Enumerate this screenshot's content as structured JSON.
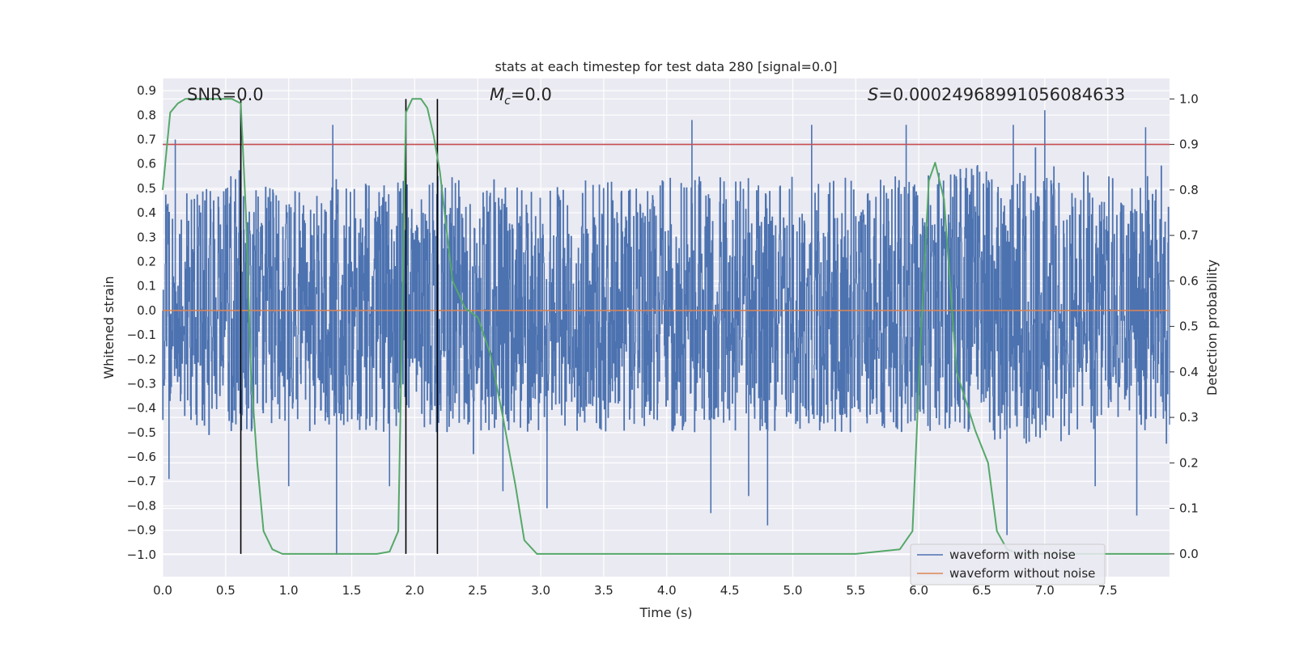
{
  "chart_data": {
    "type": "line",
    "title": "stats at each timestep for test data 280 [signal=0.0]",
    "xlabel": "Time (s)",
    "ylabel_left": "Whitened strain",
    "ylabel_right": "Detection probability",
    "xlim": [
      0.0,
      7.99
    ],
    "ylim_left": [
      -1.09,
      0.95
    ],
    "ylim_right": [
      -0.05,
      1.045
    ],
    "x_ticks": [
      "0.0",
      "0.5",
      "1.0",
      "1.5",
      "2.0",
      "2.5",
      "3.0",
      "3.5",
      "4.0",
      "4.5",
      "5.0",
      "5.5",
      "6.0",
      "6.5",
      "7.0",
      "7.5"
    ],
    "y_left_ticks": [
      "0.9",
      "0.8",
      "0.7",
      "0.6",
      "0.5",
      "0.4",
      "0.3",
      "0.2",
      "0.1",
      "0.0",
      "−0.1",
      "−0.2",
      "−0.3",
      "−0.4",
      "−0.5",
      "−0.6",
      "−0.7",
      "−0.8",
      "−0.9",
      "−1.0"
    ],
    "y_right_ticks": [
      "0.0",
      "0.1",
      "0.2",
      "0.3",
      "0.4",
      "0.5",
      "0.6",
      "0.7",
      "0.8",
      "0.9",
      "1.0"
    ],
    "grid": true,
    "annotations": {
      "snr": "SNR=0.0",
      "mc_symbol": "M",
      "mc_sub": "c",
      "mc_value": "=0.0",
      "s_symbol": "S",
      "s_value": "=0.00024968991056084633"
    },
    "threshold": {
      "name": "detection threshold",
      "axis": "right",
      "value": 0.9,
      "color": "#c44e52"
    },
    "vertical_markers": {
      "x": [
        0.62,
        1.93,
        2.18
      ],
      "y_range_right": [
        0.0,
        1.0
      ],
      "color": "#000000"
    },
    "noise_envelope": {
      "x": [
        0.0,
        0.5,
        1.0,
        1.5,
        2.0,
        2.5,
        3.0,
        3.5,
        4.0,
        4.5,
        5.0,
        5.5,
        6.0,
        6.5,
        7.0,
        7.5,
        7.99
      ],
      "upper": [
        0.5,
        0.55,
        0.5,
        0.55,
        0.55,
        0.55,
        0.5,
        0.55,
        0.55,
        0.55,
        0.55,
        0.55,
        0.55,
        0.6,
        0.6,
        0.55,
        0.55
      ],
      "lower": [
        -0.45,
        -0.5,
        -0.5,
        -0.5,
        -0.5,
        -0.5,
        -0.5,
        -0.5,
        -0.5,
        -0.5,
        -0.5,
        -0.5,
        -0.5,
        -0.55,
        -0.55,
        -0.5,
        -0.5
      ],
      "peaks": [
        {
          "x": 0.05,
          "y": -0.69
        },
        {
          "x": 0.1,
          "y": 0.7
        },
        {
          "x": 0.62,
          "y": 0.82
        },
        {
          "x": 1.0,
          "y": -0.72
        },
        {
          "x": 1.35,
          "y": 0.76
        },
        {
          "x": 1.38,
          "y": -1.0
        },
        {
          "x": 1.8,
          "y": -0.72
        },
        {
          "x": 2.7,
          "y": -0.74
        },
        {
          "x": 3.05,
          "y": -0.81
        },
        {
          "x": 4.2,
          "y": 0.78
        },
        {
          "x": 4.35,
          "y": -0.83
        },
        {
          "x": 4.65,
          "y": -0.76
        },
        {
          "x": 4.8,
          "y": -0.88
        },
        {
          "x": 5.15,
          "y": 0.76
        },
        {
          "x": 5.9,
          "y": 0.76
        },
        {
          "x": 6.7,
          "y": -0.92
        },
        {
          "x": 6.75,
          "y": 0.76
        },
        {
          "x": 7.0,
          "y": 0.82
        },
        {
          "x": 7.4,
          "y": -0.72
        },
        {
          "x": 7.73,
          "y": -0.84
        },
        {
          "x": 7.8,
          "y": 0.75
        }
      ]
    },
    "series": [
      {
        "name": "waveform with noise",
        "axis": "left",
        "color": "#4c72b0",
        "style": "dense noise, approx ±0.5 with spikes"
      },
      {
        "name": "waveform without noise",
        "axis": "left",
        "color": "#dd8452",
        "x": [
          0.0,
          7.99
        ],
        "y": [
          0.0,
          0.0
        ]
      },
      {
        "name": "detection probability",
        "axis": "right",
        "color": "#55a868",
        "x": [
          0.0,
          0.06,
          0.12,
          0.18,
          0.25,
          0.35,
          0.45,
          0.55,
          0.62,
          0.66,
          0.7,
          0.75,
          0.8,
          0.87,
          0.95,
          1.1,
          1.4,
          1.7,
          1.8,
          1.87,
          1.93,
          1.98,
          2.05,
          2.1,
          2.15,
          2.2,
          2.3,
          2.4,
          2.5,
          2.6,
          2.7,
          2.8,
          2.87,
          2.97,
          3.5,
          4.5,
          5.5,
          5.85,
          5.95,
          6.02,
          6.08,
          6.13,
          6.2,
          6.3,
          6.45,
          6.55,
          6.62,
          6.7,
          6.8,
          7.0,
          7.5,
          7.99
        ],
        "y": [
          0.8,
          0.97,
          0.99,
          1.0,
          1.0,
          1.0,
          1.0,
          1.0,
          0.99,
          0.75,
          0.4,
          0.2,
          0.05,
          0.01,
          0.0,
          0.0,
          0.0,
          0.0,
          0.005,
          0.05,
          0.97,
          1.0,
          1.0,
          0.98,
          0.92,
          0.84,
          0.6,
          0.54,
          0.52,
          0.44,
          0.3,
          0.15,
          0.03,
          0.0,
          0.0,
          0.0,
          0.0,
          0.01,
          0.05,
          0.5,
          0.82,
          0.86,
          0.78,
          0.4,
          0.27,
          0.2,
          0.05,
          0.01,
          0.0,
          0.0,
          0.0,
          0.0
        ]
      }
    ],
    "legend": {
      "location": "lower-right",
      "entries": [
        "waveform with noise",
        "waveform without noise"
      ]
    }
  }
}
